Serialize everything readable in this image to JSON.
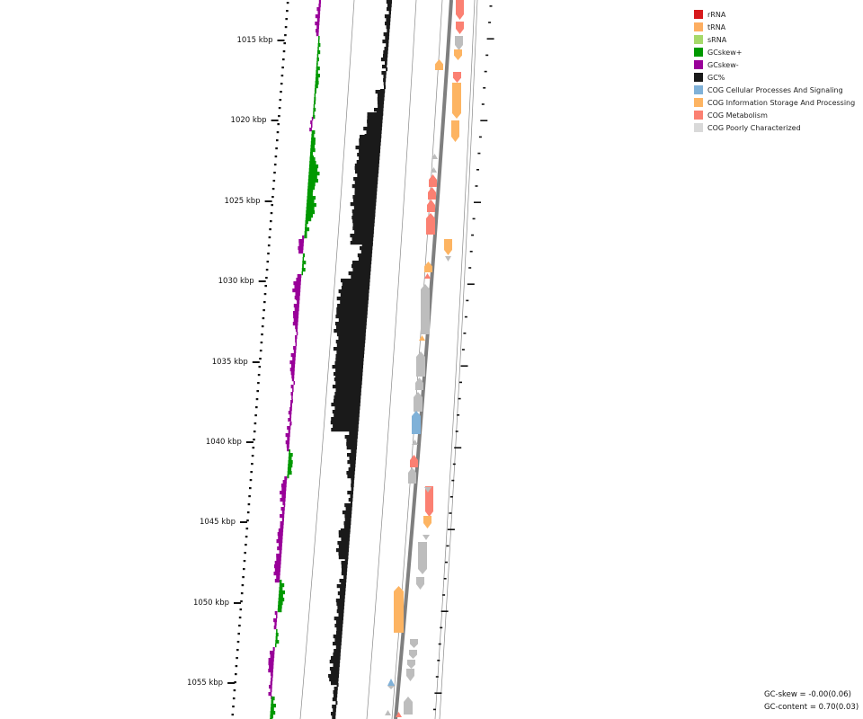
{
  "tick_labels": [
    "1015 kbp",
    "1020 kbp",
    "1025 kbp",
    "1030 kbp",
    "1035 kbp",
    "1040 kbp",
    "1045 kbp",
    "1050 kbp",
    "1055 kbp"
  ],
  "legend": [
    {
      "label": "rRNA",
      "color": "#d7191c"
    },
    {
      "label": "tRNA",
      "color": "#fdae61"
    },
    {
      "label": "sRNA",
      "color": "#a6d96a"
    },
    {
      "label": "GCskew+",
      "color": "#009900"
    },
    {
      "label": "GCskew-",
      "color": "#990099"
    },
    {
      "label": "GC%",
      "color": "#1a1a1a"
    },
    {
      "label": "COG Cellular Processes And Signaling",
      "color": "#7fb1d8"
    },
    {
      "label": "COG Information Storage And Processing",
      "color": "#fdb462"
    },
    {
      "label": "COG Metabolism",
      "color": "#fb8072"
    },
    {
      "label": "COG Poorly Characterized",
      "color": "#d9d9d9"
    }
  ],
  "stats": {
    "gc_skew": "GC-skew = -0.00(0.06)",
    "gc_content": "GC-content = 0.70(0.03)"
  }
}
